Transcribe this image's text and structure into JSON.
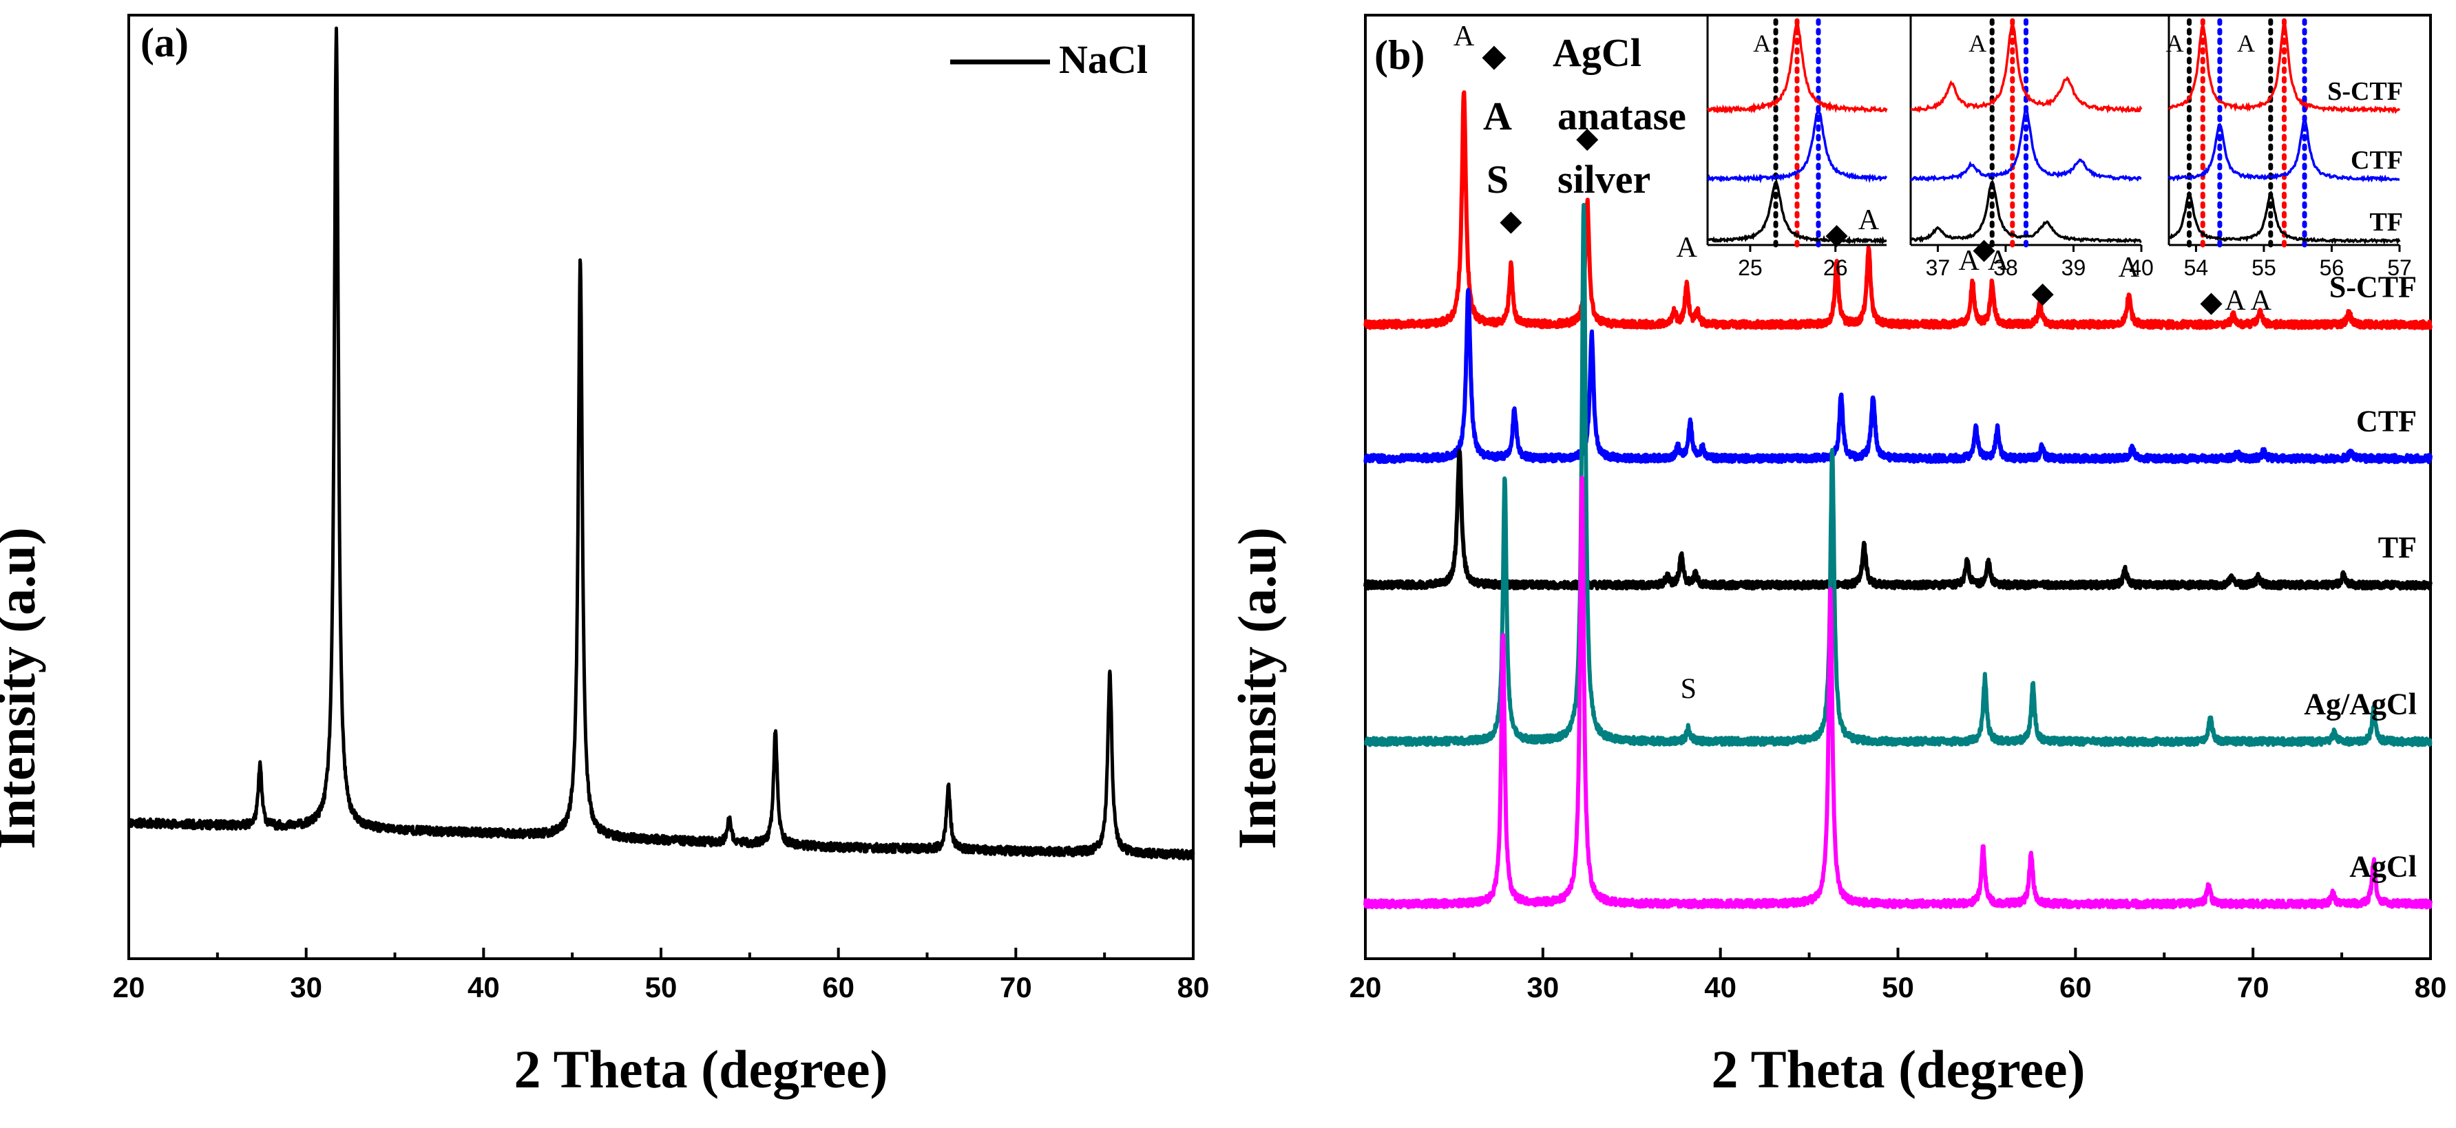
{
  "chart_data": [
    {
      "panel": "(a)",
      "type": "line",
      "title": "",
      "xlabel": "2 Theta (degree)",
      "ylabel": "Intensity (a.u)",
      "xlim": [
        20,
        80
      ],
      "xticks": [
        20,
        30,
        40,
        50,
        60,
        70,
        80
      ],
      "ylim": [
        0,
        100
      ],
      "legend": {
        "location": "top-right",
        "entries": [
          "NaCl"
        ]
      },
      "series": [
        {
          "name": "NaCl",
          "color": "#000000",
          "baseline": [
            [
              20,
              14.4
            ],
            [
              40,
              13.3
            ],
            [
              60,
              11.8
            ],
            [
              80,
              11.0
            ]
          ],
          "peaks": [
            {
              "x": 27.4,
              "height": 6.5,
              "width": 0.12
            },
            {
              "x": 31.7,
              "height": 84.5,
              "width": 0.14
            },
            {
              "x": 45.45,
              "height": 61.5,
              "width": 0.14
            },
            {
              "x": 53.85,
              "height": 2.5,
              "width": 0.12
            },
            {
              "x": 56.45,
              "height": 12.0,
              "width": 0.13
            },
            {
              "x": 66.2,
              "height": 6.8,
              "width": 0.13
            },
            {
              "x": 75.3,
              "height": 19.3,
              "width": 0.14
            }
          ]
        }
      ]
    },
    {
      "panel": "(b)",
      "type": "line",
      "title": "",
      "xlabel": "2 Theta (degree)",
      "ylabel": "Intensity (a.u)",
      "xlim": [
        20,
        80
      ],
      "xticks": [
        20,
        30,
        40,
        50,
        60,
        70,
        80
      ],
      "ylim": [
        0,
        100
      ],
      "legend": {
        "location": "top-left",
        "entries": [
          {
            "symbol": "◆",
            "text": "AgCl"
          },
          {
            "symbol": "A",
            "text": "anatase"
          },
          {
            "symbol": "S",
            "text": "silver"
          }
        ]
      },
      "series": [
        {
          "name": "S-CTF",
          "label": "S-CTF",
          "color": "#ff0000",
          "baseline": 67.2,
          "peaks": [
            {
              "x": 25.55,
              "height": 24.5,
              "width": 0.14
            },
            {
              "x": 28.2,
              "height": 6.2,
              "width": 0.12
            },
            {
              "x": 32.5,
              "height": 13.2,
              "width": 0.13
            },
            {
              "x": 37.4,
              "height": 1.4,
              "width": 0.12
            },
            {
              "x": 38.1,
              "height": 4.2,
              "width": 0.12
            },
            {
              "x": 38.7,
              "height": 1.4,
              "width": 0.12
            },
            {
              "x": 46.55,
              "height": 6.8,
              "width": 0.12
            },
            {
              "x": 48.35,
              "height": 8.2,
              "width": 0.13
            },
            {
              "x": 54.2,
              "height": 4.6,
              "width": 0.12
            },
            {
              "x": 55.3,
              "height": 4.6,
              "width": 0.12
            },
            {
              "x": 58.0,
              "height": 2.2,
              "width": 0.12
            },
            {
              "x": 63.0,
              "height": 3.2,
              "width": 0.13
            },
            {
              "x": 68.9,
              "height": 1.0,
              "width": 0.13
            },
            {
              "x": 70.4,
              "height": 1.3,
              "width": 0.13
            },
            {
              "x": 75.4,
              "height": 1.3,
              "width": 0.13
            }
          ]
        },
        {
          "name": "CTF",
          "label": "CTF",
          "color": "#0000ff",
          "baseline": 53.0,
          "peaks": [
            {
              "x": 25.8,
              "height": 18.0,
              "width": 0.14
            },
            {
              "x": 28.4,
              "height": 5.4,
              "width": 0.12
            },
            {
              "x": 32.75,
              "height": 13.2,
              "width": 0.13
            },
            {
              "x": 37.6,
              "height": 1.2,
              "width": 0.12
            },
            {
              "x": 38.3,
              "height": 4.0,
              "width": 0.12
            },
            {
              "x": 39.0,
              "height": 1.2,
              "width": 0.12
            },
            {
              "x": 46.8,
              "height": 6.8,
              "width": 0.12
            },
            {
              "x": 48.6,
              "height": 6.6,
              "width": 0.13
            },
            {
              "x": 54.4,
              "height": 3.2,
              "width": 0.12
            },
            {
              "x": 55.6,
              "height": 3.2,
              "width": 0.12
            },
            {
              "x": 58.1,
              "height": 1.2,
              "width": 0.12
            },
            {
              "x": 63.2,
              "height": 1.2,
              "width": 0.13
            },
            {
              "x": 69.1,
              "height": 0.6,
              "width": 0.13
            },
            {
              "x": 70.6,
              "height": 0.8,
              "width": 0.13
            },
            {
              "x": 75.5,
              "height": 0.6,
              "width": 0.13
            }
          ]
        },
        {
          "name": "TF",
          "label": "TF",
          "color": "#000000",
          "baseline": 39.6,
          "peaks": [
            {
              "x": 25.3,
              "height": 14.2,
              "width": 0.14
            },
            {
              "x": 37.0,
              "height": 0.9,
              "width": 0.12
            },
            {
              "x": 37.8,
              "height": 3.3,
              "width": 0.12
            },
            {
              "x": 38.6,
              "height": 1.2,
              "width": 0.12
            },
            {
              "x": 48.1,
              "height": 4.2,
              "width": 0.13
            },
            {
              "x": 53.9,
              "height": 2.8,
              "width": 0.12
            },
            {
              "x": 55.1,
              "height": 2.7,
              "width": 0.12
            },
            {
              "x": 62.8,
              "height": 1.6,
              "width": 0.13
            },
            {
              "x": 68.8,
              "height": 0.9,
              "width": 0.13
            },
            {
              "x": 70.3,
              "height": 0.9,
              "width": 0.13
            },
            {
              "x": 75.1,
              "height": 1.1,
              "width": 0.13
            }
          ]
        },
        {
          "name": "Ag/AgCl",
          "label": "Ag/AgCl",
          "color": "#008080",
          "baseline": 23.0,
          "peaks": [
            {
              "x": 27.85,
              "height": 28.0,
              "width": 0.12
            },
            {
              "x": 32.3,
              "height": 57.0,
              "width": 0.13
            },
            {
              "x": 38.2,
              "height": 1.5,
              "width": 0.12
            },
            {
              "x": 46.3,
              "height": 31.0,
              "width": 0.13
            },
            {
              "x": 54.9,
              "height": 6.8,
              "width": 0.12
            },
            {
              "x": 57.6,
              "height": 6.0,
              "width": 0.12
            },
            {
              "x": 67.6,
              "height": 2.6,
              "width": 0.12
            },
            {
              "x": 74.6,
              "height": 1.0,
              "width": 0.12
            },
            {
              "x": 76.8,
              "height": 3.5,
              "width": 0.12
            }
          ]
        },
        {
          "name": "AgCl",
          "label": "AgCl",
          "color": "#ff00ff",
          "baseline": 5.8,
          "peaks": [
            {
              "x": 27.75,
              "height": 28.5,
              "width": 0.12
            },
            {
              "x": 32.2,
              "height": 45.0,
              "width": 0.13
            },
            {
              "x": 46.2,
              "height": 33.0,
              "width": 0.13
            },
            {
              "x": 54.8,
              "height": 6.0,
              "width": 0.12
            },
            {
              "x": 57.5,
              "height": 5.4,
              "width": 0.12
            },
            {
              "x": 67.5,
              "height": 2.0,
              "width": 0.12
            },
            {
              "x": 74.5,
              "height": 1.2,
              "width": 0.12
            },
            {
              "x": 76.8,
              "height": 4.5,
              "width": 0.12
            }
          ]
        }
      ],
      "peak_annotations": [
        {
          "text": "A",
          "x": 25.55,
          "y": 96.8
        },
        {
          "text": "◆",
          "x": 28.2,
          "y": 77.2
        },
        {
          "text": "◆",
          "x": 32.5,
          "y": 86.0
        },
        {
          "text": "A",
          "x": 38.1,
          "y": 74.4
        },
        {
          "text": "◆",
          "x": 46.55,
          "y": 75.8
        },
        {
          "text": "A",
          "x": 48.35,
          "y": 77.3
        },
        {
          "text": "A",
          "x": 54.0,
          "y": 73.0
        },
        {
          "text": "◆",
          "x": 54.85,
          "y": 74.2
        },
        {
          "text": "A",
          "x": 55.65,
          "y": 73.0
        },
        {
          "text": "◆",
          "x": 58.15,
          "y": 69.6
        },
        {
          "text": "A",
          "x": 63.0,
          "y": 72.3
        },
        {
          "text": "◆",
          "x": 67.65,
          "y": 68.6
        },
        {
          "text": "A",
          "x": 69.0,
          "y": 68.8
        },
        {
          "text": "A",
          "x": 70.45,
          "y": 68.8
        },
        {
          "text": "S",
          "x": 38.2,
          "y": 27.6
        }
      ],
      "insets": [
        {
          "xlim": [
            24.5,
            26.6
          ],
          "xticks": [
            25,
            26
          ],
          "peak_labels": [
            {
              "text": "A",
              "x": 25.35
            }
          ],
          "dotted_lines": [
            {
              "x": 25.3,
              "color": "#000000"
            },
            {
              "x": 25.55,
              "color": "#ff0000"
            },
            {
              "x": 25.8,
              "color": "#0000ff"
            }
          ],
          "series": [
            {
              "name": "S-CTF",
              "color": "#ff0000",
              "peaks": [
                {
                  "x": 25.55,
                  "height": 1.0,
                  "width": 0.08
                }
              ]
            },
            {
              "name": "CTF",
              "color": "#0000ff",
              "peaks": [
                {
                  "x": 25.8,
                  "height": 1.0,
                  "width": 0.08
                }
              ]
            },
            {
              "name": "TF",
              "color": "#000000",
              "peaks": [
                {
                  "x": 25.3,
                  "height": 1.0,
                  "width": 0.08
                }
              ]
            }
          ]
        },
        {
          "xlim": [
            36.6,
            40.0
          ],
          "xticks": [
            37,
            38,
            39,
            40
          ],
          "peak_labels": [
            {
              "text": "A",
              "x": 37.85
            }
          ],
          "dotted_lines": [
            {
              "x": 37.8,
              "color": "#000000"
            },
            {
              "x": 38.1,
              "color": "#ff0000"
            },
            {
              "x": 38.3,
              "color": "#0000ff"
            }
          ],
          "series": [
            {
              "name": "S-CTF",
              "color": "#ff0000",
              "peaks": [
                {
                  "x": 37.2,
                  "height": 0.3,
                  "width": 0.09
                },
                {
                  "x": 38.1,
                  "height": 1.0,
                  "width": 0.09
                },
                {
                  "x": 38.9,
                  "height": 0.35,
                  "width": 0.12
                }
              ]
            },
            {
              "name": "CTF",
              "color": "#0000ff",
              "peaks": [
                {
                  "x": 37.5,
                  "height": 0.2,
                  "width": 0.09
                },
                {
                  "x": 38.3,
                  "height": 1.0,
                  "width": 0.09
                },
                {
                  "x": 39.1,
                  "height": 0.25,
                  "width": 0.12
                }
              ]
            },
            {
              "name": "TF",
              "color": "#000000",
              "peaks": [
                {
                  "x": 37.0,
                  "height": 0.2,
                  "width": 0.09
                },
                {
                  "x": 37.8,
                  "height": 1.0,
                  "width": 0.09
                },
                {
                  "x": 38.6,
                  "height": 0.3,
                  "width": 0.12
                }
              ]
            }
          ]
        },
        {
          "xlim": [
            53.6,
            57.0
          ],
          "xticks": [
            54,
            55,
            56,
            57
          ],
          "peak_labels": [
            {
              "text": "A",
              "x": 53.95
            },
            {
              "text": "A",
              "x": 55.0
            }
          ],
          "dotted_lines": [
            {
              "x": 53.9,
              "color": "#000000"
            },
            {
              "x": 55.1,
              "color": "#000000"
            },
            {
              "x": 54.1,
              "color": "#ff0000"
            },
            {
              "x": 55.3,
              "color": "#ff0000"
            },
            {
              "x": 54.35,
              "color": "#0000ff"
            },
            {
              "x": 55.6,
              "color": "#0000ff"
            }
          ],
          "series": [
            {
              "name": "S-CTF",
              "label": "S-CTF",
              "color": "#ff0000",
              "peaks": [
                {
                  "x": 54.1,
                  "height": 1.0,
                  "width": 0.08
                },
                {
                  "x": 55.3,
                  "height": 1.0,
                  "width": 0.08
                }
              ]
            },
            {
              "name": "CTF",
              "label": "CTF",
              "color": "#0000ff",
              "peaks": [
                {
                  "x": 54.35,
                  "height": 0.8,
                  "width": 0.08
                },
                {
                  "x": 55.6,
                  "height": 0.85,
                  "width": 0.08
                }
              ]
            },
            {
              "name": "TF",
              "label": "TF",
              "color": "#000000",
              "peaks": [
                {
                  "x": 53.9,
                  "height": 0.8,
                  "width": 0.08
                },
                {
                  "x": 55.1,
                  "height": 0.8,
                  "width": 0.08
                }
              ]
            }
          ]
        }
      ]
    }
  ]
}
